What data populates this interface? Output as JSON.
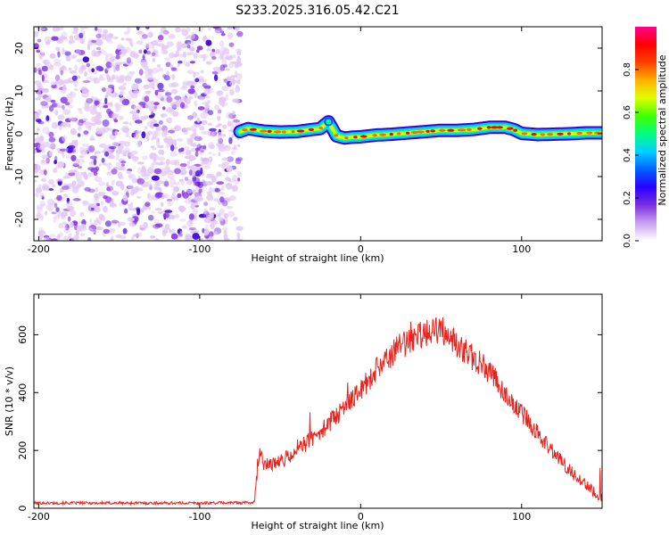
{
  "title": "S233.2025.316.05.42.C21",
  "colors": {
    "snr_line": "#e8231e",
    "colormap": [
      "#ffffff",
      "#e2c8f5",
      "#8a3de6",
      "#3a00e0",
      "#0050ff",
      "#00c8ff",
      "#00ff9a",
      "#3cff00",
      "#d8ff00",
      "#ffd000",
      "#ff6a00",
      "#ff0000",
      "#ff0080"
    ]
  },
  "chart_data": [
    {
      "type": "heatmap",
      "xlabel": "Height of straight line (km)",
      "ylabel": "Frequency (Hz)",
      "xlim": [
        -203,
        150
      ],
      "ylim": [
        -25,
        25
      ],
      "xticks": [
        -200,
        -100,
        0,
        100
      ],
      "yticks": [
        -20,
        -10,
        0,
        10,
        20
      ],
      "colorbar": {
        "label": "Normalized spectral amplitude",
        "range": [
          0,
          1
        ],
        "ticks": [
          0.0,
          0.2,
          0.4,
          0.6,
          0.8
        ]
      },
      "noise_region_x": [
        -203,
        -75
      ],
      "ridge_x": [
        -75,
        150
      ],
      "ridge": {
        "x": [
          -75,
          -70,
          -60,
          -50,
          -40,
          -30,
          -25,
          -22,
          -20,
          -18,
          -15,
          -10,
          -5,
          0,
          5,
          10,
          20,
          30,
          40,
          50,
          60,
          70,
          80,
          90,
          95,
          100,
          110,
          120,
          130,
          140,
          150
        ],
        "freq": [
          0.5,
          1.2,
          0.6,
          0.4,
          0.5,
          1.0,
          1.2,
          2.2,
          2.8,
          1.5,
          -0.5,
          -1.0,
          -0.8,
          -0.7,
          -0.5,
          -0.3,
          -0.1,
          0.2,
          0.5,
          0.8,
          0.8,
          1.0,
          1.5,
          1.5,
          1.0,
          0.1,
          -0.2,
          -0.1,
          0.0,
          0.2,
          0.2
        ]
      }
    },
    {
      "type": "line",
      "xlabel": "Height of straight line (km)",
      "ylabel": "SNR (10 * v/v)",
      "xlim": [
        -203,
        150
      ],
      "ylim": [
        0,
        740
      ],
      "xticks": [
        -200,
        -100,
        0,
        100
      ],
      "yticks": [
        0,
        200,
        400,
        600
      ],
      "envelope": {
        "x": [
          -203,
          -150,
          -100,
          -66,
          -64,
          -62,
          -60,
          -55,
          -50,
          -40,
          -30,
          -20,
          -10,
          0,
          10,
          20,
          30,
          40,
          48,
          55,
          60,
          70,
          80,
          90,
          100,
          110,
          120,
          130,
          140,
          150
        ],
        "y": [
          18,
          18,
          18,
          20,
          140,
          210,
          150,
          150,
          160,
          200,
          240,
          290,
          350,
          410,
          480,
          540,
          580,
          610,
          620,
          600,
          570,
          520,
          470,
          400,
          330,
          260,
          190,
          130,
          80,
          35
        ]
      }
    }
  ]
}
